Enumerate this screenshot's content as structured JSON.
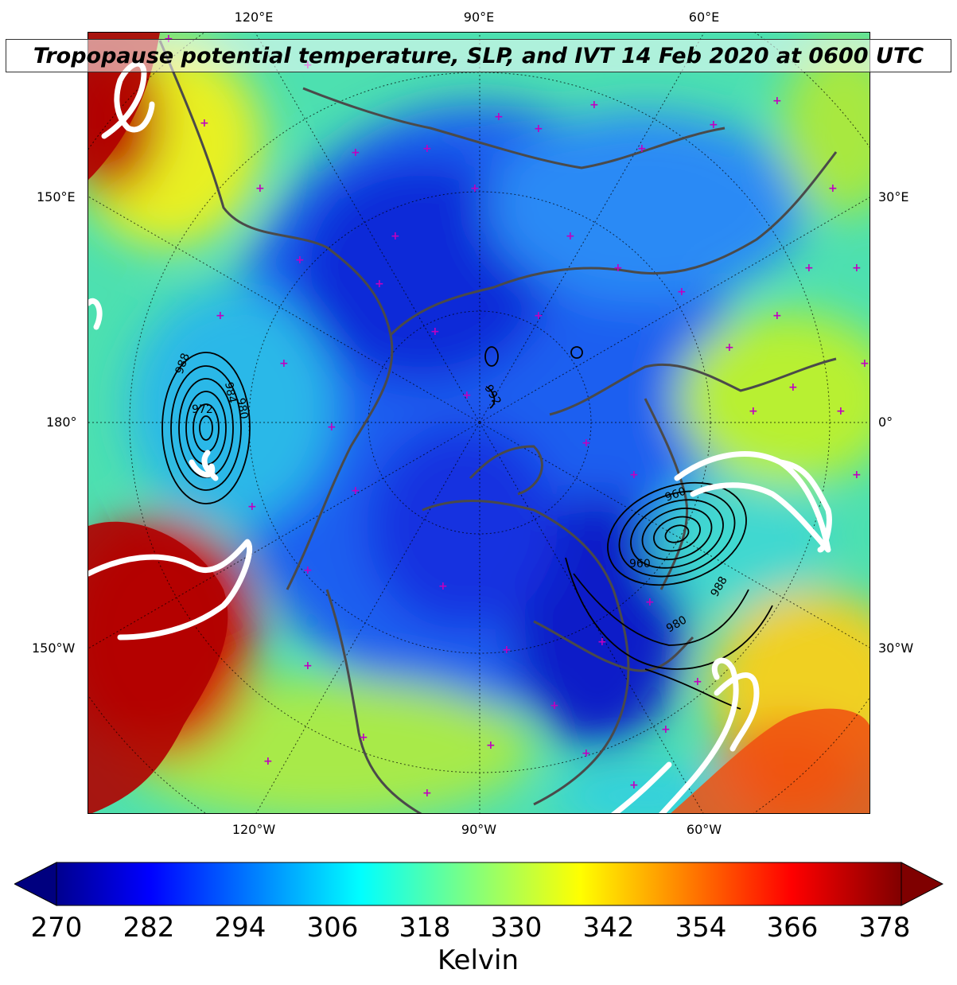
{
  "title": "Tropopause potential temperature, SLP, and IVT 14 Feb 2020 at 0600 UTC",
  "longitude_labels_top": [
    "120°E",
    "90°E",
    "60°E"
  ],
  "longitude_labels_bottom": [
    "120°W",
    "90°W",
    "60°W"
  ],
  "side_labels_left": [
    "150°E",
    "180°",
    "150°W"
  ],
  "side_labels_right": [
    "30°E",
    "0°",
    "30°W"
  ],
  "slp_contour_labels": [
    "988",
    "972",
    "984",
    "980",
    "992",
    "960",
    "980",
    "988",
    "960"
  ],
  "colorbar": {
    "unit_label": "Kelvin",
    "ticks": [
      "270",
      "282",
      "294",
      "306",
      "318",
      "330",
      "342",
      "354",
      "366",
      "378"
    ],
    "min": 270,
    "max": 381,
    "extend": "both",
    "colormap": "jet"
  },
  "colors": {
    "coastline": "#4a4a4a",
    "station_marker": "#c000c0",
    "ivt_contour": "#ffffff",
    "slp_contour": "#000000"
  }
}
